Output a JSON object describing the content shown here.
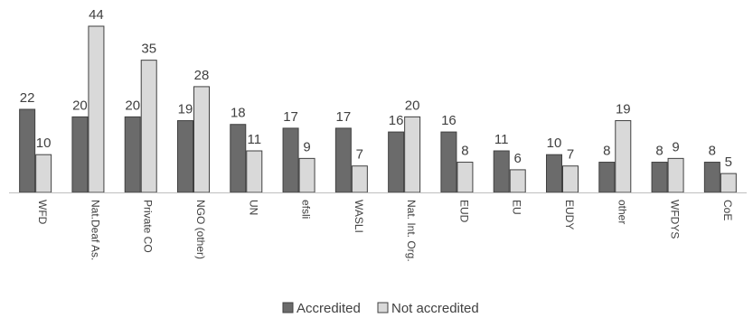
{
  "chart_data": {
    "type": "bar",
    "title": "",
    "xlabel": "",
    "ylabel": "",
    "ylim": [
      0,
      44
    ],
    "grid": false,
    "legend_position": "bottom",
    "categories": [
      "WFD",
      "Nat.Deaf As.",
      "Private CO",
      "NGO (other)",
      "UN",
      "efsli",
      "WASLI",
      "Nat. Int. Org.",
      "EUD",
      "EU",
      "EUDY",
      "other",
      "WFDYS",
      "CoE"
    ],
    "series": [
      {
        "name": "Accredited",
        "color": "#6b6b6b",
        "values": [
          22,
          20,
          20,
          19,
          18,
          17,
          17,
          16,
          16,
          11,
          10,
          8,
          8,
          8
        ]
      },
      {
        "name": "Not accredited",
        "color": "#d9d9d9",
        "values": [
          10,
          44,
          35,
          28,
          11,
          9,
          7,
          20,
          8,
          6,
          7,
          19,
          9,
          5
        ]
      }
    ]
  }
}
